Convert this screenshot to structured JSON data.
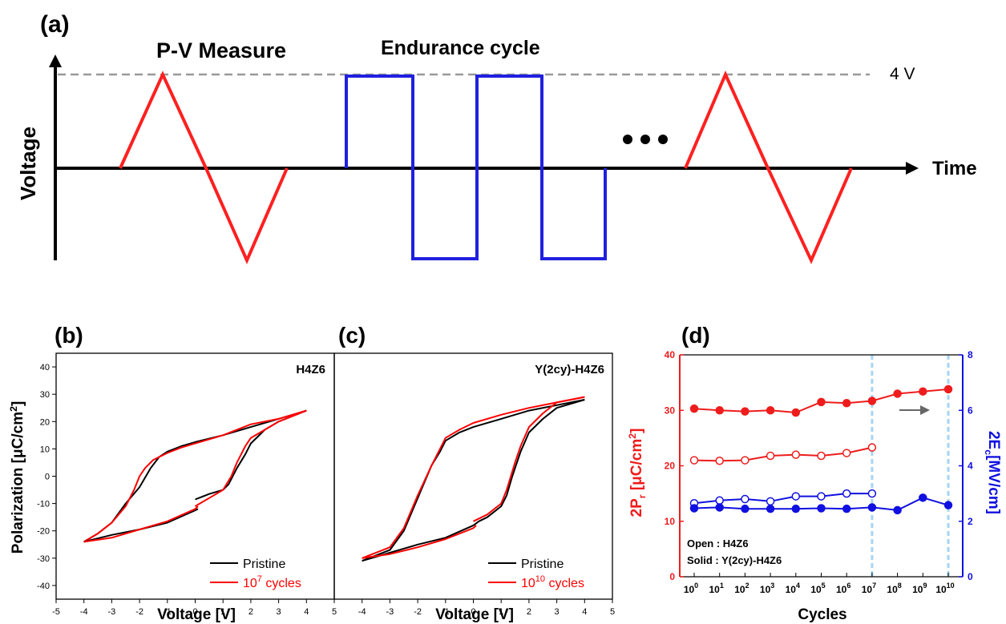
{
  "panel_a": {
    "label": "(a)",
    "pv_title": "P-V Measure",
    "endurance_title": "Endurance cycle",
    "voltage_label": "Voltage",
    "time_label": "Time",
    "level_label": "4 V",
    "colors": {
      "triangle": "#ff2020",
      "square": "#2020e0",
      "axis": "#000000",
      "dashed": "#999999"
    }
  },
  "chart_data": [
    {
      "panel": "(b)",
      "type": "line",
      "annotation": "H4Z6",
      "xlabel": "Voltage [V]",
      "ylabel": "Polarization [μC/cm²]",
      "xlim": [
        -5,
        5
      ],
      "ylim": [
        -45,
        45
      ],
      "xticks": [
        "-5",
        "-4",
        "-3",
        "-2",
        "-1",
        "0",
        "1",
        "2",
        "3",
        "4",
        "5"
      ],
      "yticks": [
        "-40",
        "-30",
        "-20",
        "-10",
        "0",
        "10",
        "20",
        "30",
        "40"
      ],
      "legend_position": "bottom-right",
      "series": [
        {
          "name": "Pristine",
          "legend_main": "Pristine",
          "legend_sup": "",
          "legend_suffix": "",
          "color": "#000000",
          "upper": [
            [
              -4,
              -24
            ],
            [
              -3.5,
              -21
            ],
            [
              -3,
              -17
            ],
            [
              -2.5,
              -10
            ],
            [
              -2,
              -4
            ],
            [
              -1.6,
              3
            ],
            [
              -1.3,
              7
            ],
            [
              -1,
              9
            ],
            [
              -0.5,
              11
            ],
            [
              0,
              12.5
            ],
            [
              1,
              15
            ],
            [
              2,
              18
            ],
            [
              3,
              21
            ],
            [
              4,
              24
            ]
          ],
          "lower": [
            [
              4,
              24
            ],
            [
              3.5,
              22
            ],
            [
              3,
              20
            ],
            [
              2.5,
              17
            ],
            [
              2,
              12
            ],
            [
              1.8,
              8
            ],
            [
              1.5,
              3
            ],
            [
              1.2,
              -3
            ],
            [
              1,
              -5
            ],
            [
              0.5,
              -6.5
            ],
            [
              0,
              -8.5
            ]
          ]
        },
        {
          "name": "10^7 cycles",
          "legend_main": "10",
          "legend_sup": "7",
          "legend_suffix": " cycles",
          "color": "#ff0000",
          "upper": [
            [
              -4,
              -24
            ],
            [
              -3.5,
              -21
            ],
            [
              -3,
              -17
            ],
            [
              -2.5,
              -11
            ],
            [
              -2.2,
              -5
            ],
            [
              -2,
              0
            ],
            [
              -1.8,
              3
            ],
            [
              -1.5,
              6
            ],
            [
              -1,
              8.5
            ],
            [
              -0.5,
              10.5
            ],
            [
              0,
              12
            ],
            [
              1,
              15
            ],
            [
              2,
              19
            ],
            [
              3,
              21
            ],
            [
              4,
              24
            ]
          ],
          "lower": [
            [
              4,
              24
            ],
            [
              3.5,
              22
            ],
            [
              3,
              20
            ],
            [
              2.5,
              17
            ],
            [
              2,
              14
            ],
            [
              1.8,
              11
            ],
            [
              1.5,
              5
            ],
            [
              1.3,
              0
            ],
            [
              1,
              -5
            ],
            [
              0.5,
              -8
            ],
            [
              0,
              -11
            ]
          ]
        },
        {
          "name": "Pristine lower branch",
          "color": "#000000",
          "extra": true,
          "upper": [
            [
              -4,
              -24
            ],
            [
              -3,
              -21.5
            ],
            [
              -2,
              -19.5
            ],
            [
              -1,
              -17
            ],
            [
              0,
              -12.5
            ],
            [
              0.1,
              -12
            ]
          ]
        },
        {
          "name": "10^7 lower branch",
          "color": "#ff0000",
          "extra": true,
          "upper": [
            [
              -4,
              -24
            ],
            [
              -3,
              -22.5
            ],
            [
              -2,
              -19.5
            ],
            [
              -1,
              -16.5
            ],
            [
              0,
              -12
            ],
            [
              0.1,
              -11
            ]
          ]
        }
      ]
    },
    {
      "panel": "(c)",
      "type": "line",
      "annotation": "Y(2cy)-H4Z6",
      "xlabel": "Voltage [V]",
      "ylabel": "",
      "xlim": [
        -5,
        5
      ],
      "ylim": [
        -45,
        45
      ],
      "xticks": [
        "-4",
        "-3",
        "-2",
        "-1",
        "0",
        "1",
        "2",
        "3",
        "4",
        "5"
      ],
      "yticks": [],
      "legend_position": "bottom-right",
      "series": [
        {
          "name": "Pristine",
          "legend_main": "Pristine",
          "legend_sup": "",
          "legend_suffix": "",
          "color": "#000000",
          "upper": [
            [
              -4,
              -31
            ],
            [
              -3,
              -27
            ],
            [
              -2.5,
              -20
            ],
            [
              -2,
              -8
            ],
            [
              -1.5,
              4
            ],
            [
              -1.2,
              9
            ],
            [
              -1,
              13
            ],
            [
              -0.5,
              16
            ],
            [
              0,
              18
            ],
            [
              1,
              21
            ],
            [
              2,
              24
            ],
            [
              3,
              26
            ],
            [
              4,
              28
            ]
          ],
          "lower": [
            [
              4,
              28
            ],
            [
              3,
              25
            ],
            [
              2.5,
              21
            ],
            [
              2,
              16
            ],
            [
              1.7,
              9
            ],
            [
              1.4,
              0
            ],
            [
              1.2,
              -7
            ],
            [
              1,
              -11
            ],
            [
              0.5,
              -15
            ],
            [
              0.2,
              -16.5
            ]
          ]
        },
        {
          "name": "10^10 cycles",
          "legend_main": "10",
          "legend_sup": "10",
          "legend_suffix": " cycles",
          "color": "#ff0000",
          "upper": [
            [
              -4,
              -30
            ],
            [
              -3,
              -26
            ],
            [
              -2.5,
              -19
            ],
            [
              -2,
              -7
            ],
            [
              -1.5,
              4
            ],
            [
              -1.2,
              10
            ],
            [
              -1,
              14
            ],
            [
              -0.5,
              17
            ],
            [
              0,
              19.5
            ],
            [
              1,
              22.5
            ],
            [
              2,
              25
            ],
            [
              3,
              27
            ],
            [
              4,
              29
            ]
          ],
          "lower": [
            [
              4,
              29
            ],
            [
              3,
              27
            ],
            [
              2.5,
              23
            ],
            [
              2,
              18
            ],
            [
              1.7,
              11
            ],
            [
              1.5,
              5
            ],
            [
              1.2,
              -5
            ],
            [
              1,
              -10
            ],
            [
              0.5,
              -14
            ],
            [
              0,
              -16.5
            ]
          ]
        },
        {
          "name": "Pristine lower branch",
          "color": "#000000",
          "extra": true,
          "upper": [
            [
              -4,
              -31
            ],
            [
              -3,
              -28
            ],
            [
              -2,
              -25
            ],
            [
              -1,
              -22.5
            ],
            [
              0,
              -18
            ],
            [
              0.2,
              -16.5
            ]
          ]
        },
        {
          "name": "10^10 lower branch",
          "color": "#ff0000",
          "extra": true,
          "upper": [
            [
              -4,
              -30
            ],
            [
              -3,
              -28.5
            ],
            [
              -2,
              -26
            ],
            [
              -1,
              -23
            ],
            [
              0,
              -19
            ],
            [
              0.1,
              -18
            ]
          ]
        }
      ]
    },
    {
      "panel": "(d)",
      "type": "scatter",
      "xlabel": "Cycles",
      "ylabel_left": "2P_r [μC/cm²]",
      "ylabel_right": "2E_c [MV/cm]",
      "ylim_left": [
        0,
        40
      ],
      "ylim_right": [
        0,
        8
      ],
      "yticks_left": [
        "0",
        "10",
        "20",
        "30",
        "40"
      ],
      "yticks_right": [
        "0",
        "2",
        "4",
        "6",
        "8"
      ],
      "xticks": [
        "10^0",
        "10^1",
        "10^2",
        "10^3",
        "10^4",
        "10^5",
        "10^6",
        "10^7",
        "10^8",
        "10^9",
        "10^10"
      ],
      "x_log_exponents": [
        0,
        1,
        2,
        3,
        4,
        5,
        6,
        7,
        8,
        9,
        10
      ],
      "vlines_at_exponent": [
        7,
        10
      ],
      "legend_open": "Open : H4Z6",
      "legend_solid": "Solid : Y(2cy)-H4Z6",
      "series": [
        {
          "name": "2Pr Y(2cy)-H4Z6",
          "axis": "left",
          "filled": true,
          "color": "#ee1c1c",
          "x": [
            0,
            1,
            2,
            3,
            4,
            5,
            6,
            7,
            8,
            9,
            10
          ],
          "y": [
            30.3,
            30.0,
            29.8,
            30.0,
            29.6,
            31.5,
            31.3,
            31.7,
            33.0,
            33.4,
            33.8
          ]
        },
        {
          "name": "2Pr H4Z6",
          "axis": "left",
          "filled": false,
          "color": "#ee1c1c",
          "x": [
            0,
            1,
            2,
            3,
            4,
            5,
            6,
            7
          ],
          "y": [
            21.0,
            20.9,
            21.0,
            21.8,
            22.0,
            21.8,
            22.3,
            23.3
          ]
        },
        {
          "name": "2Ec H4Z6",
          "axis": "right",
          "filled": false,
          "color": "#1010e0",
          "x": [
            0,
            1,
            2,
            3,
            4,
            5,
            6,
            7
          ],
          "y": [
            2.65,
            2.75,
            2.8,
            2.72,
            2.9,
            2.9,
            3.0,
            3.0
          ]
        },
        {
          "name": "2Ec Y(2cy)-H4Z6",
          "axis": "right",
          "filled": true,
          "color": "#1010e0",
          "x": [
            0,
            1,
            2,
            3,
            4,
            5,
            6,
            7,
            8,
            9,
            10
          ],
          "y": [
            2.47,
            2.5,
            2.45,
            2.45,
            2.45,
            2.47,
            2.45,
            2.5,
            2.4,
            2.85,
            2.58
          ]
        }
      ]
    }
  ]
}
